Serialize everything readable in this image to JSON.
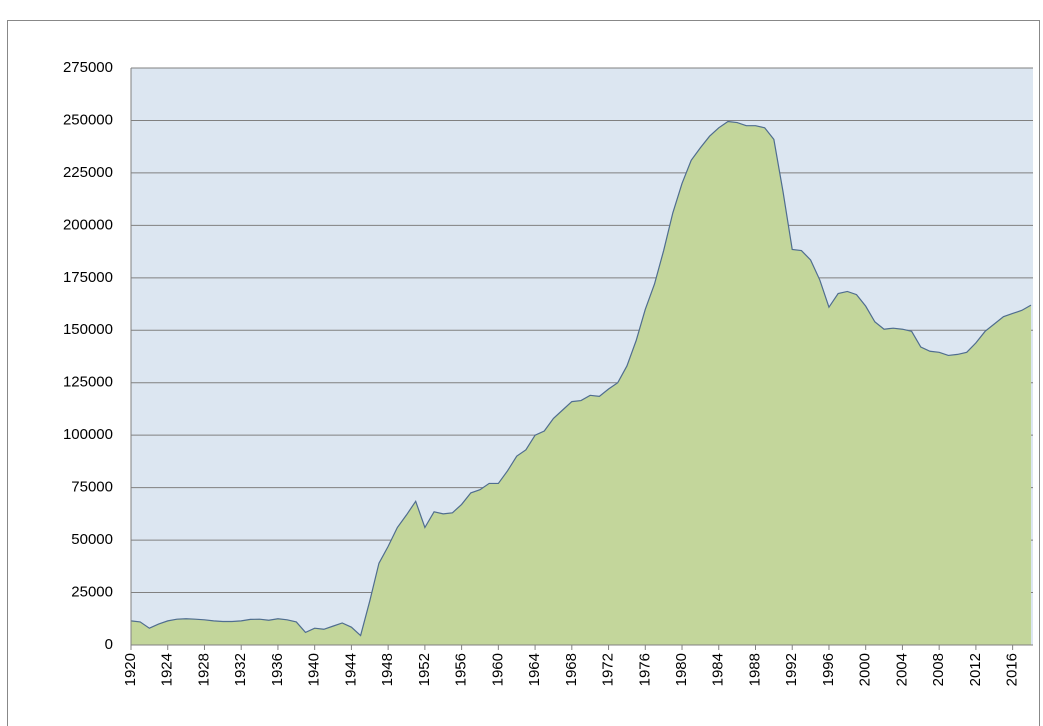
{
  "chart_data": {
    "type": "area",
    "x": [
      1920,
      1921,
      1922,
      1923,
      1924,
      1925,
      1926,
      1927,
      1928,
      1929,
      1930,
      1931,
      1932,
      1933,
      1934,
      1935,
      1936,
      1937,
      1938,
      1939,
      1940,
      1941,
      1942,
      1943,
      1944,
      1945,
      1946,
      1947,
      1948,
      1949,
      1950,
      1951,
      1952,
      1953,
      1954,
      1955,
      1956,
      1957,
      1958,
      1959,
      1960,
      1961,
      1962,
      1963,
      1964,
      1965,
      1966,
      1967,
      1968,
      1969,
      1970,
      1971,
      1972,
      1973,
      1974,
      1975,
      1976,
      1977,
      1978,
      1979,
      1980,
      1981,
      1982,
      1983,
      1984,
      1985,
      1986,
      1987,
      1988,
      1989,
      1990,
      1991,
      1992,
      1993,
      1994,
      1995,
      1996,
      1997,
      1998,
      1999,
      2000,
      2001,
      2002,
      2003,
      2004,
      2005,
      2006,
      2007,
      2008,
      2009,
      2010,
      2011,
      2012,
      2013,
      2014,
      2015,
      2016,
      2017,
      2018
    ],
    "values": [
      11500,
      11000,
      8000,
      10000,
      11500,
      12300,
      12500,
      12300,
      12000,
      11500,
      11200,
      11200,
      11500,
      12200,
      12300,
      11800,
      12500,
      12000,
      11000,
      6000,
      8000,
      7500,
      9000,
      10500,
      8500,
      4500,
      21000,
      39000,
      47000,
      56000,
      62000,
      68500,
      56000,
      63500,
      62500,
      63000,
      67000,
      72500,
      74000,
      77000,
      77000,
      83000,
      90000,
      93000,
      100000,
      102000,
      108000,
      112000,
      116000,
      116500,
      119000,
      118500,
      122000,
      125000,
      133000,
      145000,
      160000,
      172000,
      188000,
      206000,
      220000,
      231000,
      237000,
      242500,
      246500,
      249500,
      249000,
      247500,
      247500,
      246500,
      241000,
      216000,
      188500,
      188000,
      183500,
      174000,
      161000,
      167500,
      168500,
      167000,
      161500,
      154000,
      150500,
      151000,
      150500,
      149500,
      142000,
      140000,
      139500,
      138000,
      138500,
      139500,
      144000,
      149500,
      153000,
      156500,
      158000,
      159500,
      162000
    ],
    "color": "#c3d69b",
    "line_color": "#4f6d8f",
    "background": "#dce6f1",
    "xlim": [
      1920,
      2018
    ],
    "xticks": [
      1920,
      1924,
      1928,
      1932,
      1936,
      1940,
      1944,
      1948,
      1952,
      1956,
      1960,
      1964,
      1968,
      1972,
      1976,
      1980,
      1984,
      1988,
      1992,
      1996,
      2000,
      2004,
      2008,
      2012,
      2016
    ],
    "ylim": [
      0,
      275000
    ],
    "yticks": [
      0,
      25000,
      50000,
      75000,
      100000,
      125000,
      150000,
      175000,
      200000,
      225000,
      250000,
      275000
    ],
    "grid": true
  }
}
